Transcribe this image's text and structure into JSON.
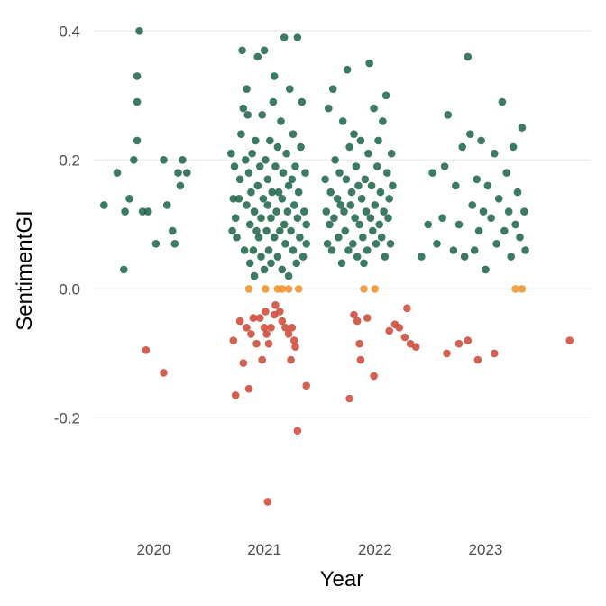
{
  "chart_data": {
    "type": "scatter",
    "title": "",
    "xlabel": "Year",
    "ylabel": "SentimentGI",
    "xlim": [
      2019.45,
      2023.95
    ],
    "ylim": [
      -0.37,
      0.42
    ],
    "x_ticks": [
      2020,
      2021,
      2022,
      2023
    ],
    "x_tick_labels": [
      "2020",
      "2021",
      "2022",
      "2023"
    ],
    "y_ticks": [
      -0.2,
      0.0,
      0.2,
      0.4
    ],
    "y_tick_labels": [
      "-0.2",
      "0.0",
      "0.2",
      "0.4"
    ],
    "grid": true,
    "legend": "none",
    "colors": {
      "positive": "#1b6347",
      "neutral": "#ef8f24",
      "negative": "#cc4433"
    },
    "series": [
      {
        "color": "#1b6347",
        "points": [
          [
            2019.55,
            0.13
          ],
          [
            2019.67,
            0.18
          ],
          [
            2019.73,
            0.03
          ],
          [
            2019.74,
            0.12
          ],
          [
            2019.78,
            0.14
          ],
          [
            2019.82,
            0.2
          ],
          [
            2019.85,
            0.23
          ],
          [
            2019.85,
            0.29
          ],
          [
            2019.85,
            0.33
          ],
          [
            2019.87,
            0.4
          ],
          [
            2019.9,
            0.12
          ],
          [
            2019.95,
            0.12
          ],
          [
            2020.02,
            0.07
          ],
          [
            2020.09,
            0.2
          ],
          [
            2020.12,
            0.13
          ],
          [
            2020.17,
            0.09
          ],
          [
            2020.19,
            0.07
          ],
          [
            2020.22,
            0.18
          ],
          [
            2020.24,
            0.16
          ],
          [
            2020.26,
            0.2
          ],
          [
            2020.3,
            0.18
          ],
          [
            2020.7,
            0.21
          ],
          [
            2020.71,
            0.09
          ],
          [
            2020.72,
            0.14
          ],
          [
            2020.73,
            0.19
          ],
          [
            2020.74,
            0.11
          ],
          [
            2020.75,
            0.08
          ],
          [
            2020.77,
            0.14
          ],
          [
            2020.78,
            0.17
          ],
          [
            2020.79,
            0.24
          ],
          [
            2020.8,
            0.37
          ],
          [
            2020.81,
            0.28
          ],
          [
            2020.82,
            0.06
          ],
          [
            2020.83,
            0.2
          ],
          [
            2020.84,
            0.31
          ],
          [
            2020.84,
            0.13
          ],
          [
            2020.85,
            0.27
          ],
          [
            2020.86,
            0.18
          ],
          [
            2020.87,
            0.1
          ],
          [
            2020.87,
            0.04
          ],
          [
            2020.88,
            0.15
          ],
          [
            2020.89,
            0.21
          ],
          [
            2020.9,
            0.06
          ],
          [
            2020.91,
            0.12
          ],
          [
            2020.91,
            0.02
          ],
          [
            2020.92,
            0.23
          ],
          [
            2020.93,
            0.09
          ],
          [
            2020.94,
            0.16
          ],
          [
            2020.94,
            0.36
          ],
          [
            2020.95,
            0.08
          ],
          [
            2020.96,
            0.19
          ],
          [
            2020.97,
            0.11
          ],
          [
            2020.97,
            0.05
          ],
          [
            2020.98,
            0.27
          ],
          [
            2020.99,
            0.14
          ],
          [
            2021.0,
            0.37
          ],
          [
            2021.0,
            0.03
          ],
          [
            2021.01,
            0.2
          ],
          [
            2021.02,
            0.09
          ],
          [
            2021.03,
            0.13
          ],
          [
            2021.03,
            0.17
          ],
          [
            2021.04,
            0.06
          ],
          [
            2021.05,
            0.23
          ],
          [
            2021.06,
            0.11
          ],
          [
            2021.06,
            0.04
          ],
          [
            2021.07,
            0.15
          ],
          [
            2021.08,
            0.29
          ],
          [
            2021.09,
            0.08
          ],
          [
            2021.09,
            0.33
          ],
          [
            2021.1,
            0.19
          ],
          [
            2021.11,
            0.12
          ],
          [
            2021.12,
            0.05
          ],
          [
            2021.12,
            0.22
          ],
          [
            2021.13,
            0.15
          ],
          [
            2021.14,
            0.09
          ],
          [
            2021.15,
            0.26
          ],
          [
            2021.16,
            0.14
          ],
          [
            2021.16,
            0.03
          ],
          [
            2021.17,
            0.18
          ],
          [
            2021.18,
            0.1
          ],
          [
            2021.18,
            0.39
          ],
          [
            2021.19,
            0.07
          ],
          [
            2021.2,
            0.21
          ],
          [
            2021.21,
            0.12
          ],
          [
            2021.22,
            0.16
          ],
          [
            2021.22,
            0.02
          ],
          [
            2021.23,
            0.31
          ],
          [
            2021.24,
            0.09
          ],
          [
            2021.25,
            0.17
          ],
          [
            2021.26,
            0.06
          ],
          [
            2021.26,
            0.24
          ],
          [
            2021.27,
            0.13
          ],
          [
            2021.28,
            0.19
          ],
          [
            2021.29,
            0.04
          ],
          [
            2021.3,
            0.11
          ],
          [
            2021.3,
            0.39
          ],
          [
            2021.31,
            0.15
          ],
          [
            2021.32,
            0.08
          ],
          [
            2021.33,
            0.22
          ],
          [
            2021.34,
            0.29
          ],
          [
            2021.35,
            0.05
          ],
          [
            2021.36,
            0.12
          ],
          [
            2021.37,
            0.18
          ],
          [
            2021.38,
            0.1
          ],
          [
            2021.38,
            0.07
          ],
          [
            2021.55,
            0.17
          ],
          [
            2021.56,
            0.12
          ],
          [
            2021.57,
            0.07
          ],
          [
            2021.58,
            0.28
          ],
          [
            2021.59,
            0.1
          ],
          [
            2021.6,
            0.15
          ],
          [
            2021.61,
            0.06
          ],
          [
            2021.62,
            0.31
          ],
          [
            2021.63,
            0.11
          ],
          [
            2021.64,
            0.2
          ],
          [
            2021.66,
            0.14
          ],
          [
            2021.67,
            0.08
          ],
          [
            2021.68,
            0.18
          ],
          [
            2021.69,
            0.13
          ],
          [
            2021.7,
            0.04
          ],
          [
            2021.71,
            0.26
          ],
          [
            2021.72,
            0.12
          ],
          [
            2021.73,
            0.09
          ],
          [
            2021.74,
            0.17
          ],
          [
            2021.75,
            0.34
          ],
          [
            2021.76,
            0.06
          ],
          [
            2021.77,
            0.22
          ],
          [
            2021.78,
            0.13
          ],
          [
            2021.79,
            0.15
          ],
          [
            2021.8,
            0.07
          ],
          [
            2021.81,
            0.24
          ],
          [
            2021.82,
            0.11
          ],
          [
            2021.83,
            0.19
          ],
          [
            2021.84,
            0.05
          ],
          [
            2021.85,
            0.16
          ],
          [
            2021.86,
            0.1
          ],
          [
            2021.87,
            0.23
          ],
          [
            2021.88,
            0.14
          ],
          [
            2021.89,
            0.08
          ],
          [
            2021.9,
            0.04
          ],
          [
            2021.91,
            0.17
          ],
          [
            2021.92,
            0.12
          ],
          [
            2021.93,
            0.06
          ],
          [
            2021.94,
            0.21
          ],
          [
            2021.95,
            0.35
          ],
          [
            2021.96,
            0.11
          ],
          [
            2021.97,
            0.16
          ],
          [
            2021.98,
            0.09
          ],
          [
            2021.99,
            0.28
          ],
          [
            2022.0,
            0.13
          ],
          [
            2022.01,
            0.07
          ],
          [
            2022.02,
            0.19
          ],
          [
            2022.03,
            0.23
          ],
          [
            2022.04,
            0.1
          ],
          [
            2022.05,
            0.15
          ],
          [
            2022.06,
            0.08
          ],
          [
            2022.07,
            0.26
          ],
          [
            2022.08,
            0.12
          ],
          [
            2022.09,
            0.05
          ],
          [
            2022.1,
            0.3
          ],
          [
            2022.11,
            0.18
          ],
          [
            2022.12,
            0.11
          ],
          [
            2022.13,
            0.14
          ],
          [
            2022.14,
            0.07
          ],
          [
            2022.15,
            0.21
          ],
          [
            2022.16,
            0.16
          ],
          [
            2022.42,
            0.05
          ],
          [
            2022.48,
            0.1
          ],
          [
            2022.52,
            0.18
          ],
          [
            2022.56,
            0.07
          ],
          [
            2022.61,
            0.11
          ],
          [
            2022.63,
            0.19
          ],
          [
            2022.66,
            0.27
          ],
          [
            2022.71,
            0.06
          ],
          [
            2022.73,
            0.16
          ],
          [
            2022.76,
            0.1
          ],
          [
            2022.79,
            0.22
          ],
          [
            2022.81,
            0.05
          ],
          [
            2022.84,
            0.36
          ],
          [
            2022.86,
            0.24
          ],
          [
            2022.88,
            0.13
          ],
          [
            2022.9,
            0.06
          ],
          [
            2022.92,
            0.17
          ],
          [
            2022.94,
            0.09
          ],
          [
            2022.96,
            0.23
          ],
          [
            2022.98,
            0.12
          ],
          [
            2023.0,
            0.03
          ],
          [
            2023.02,
            0.16
          ],
          [
            2023.05,
            0.11
          ],
          [
            2023.08,
            0.21
          ],
          [
            2023.1,
            0.07
          ],
          [
            2023.12,
            0.14
          ],
          [
            2023.15,
            0.29
          ],
          [
            2023.17,
            0.09
          ],
          [
            2023.19,
            0.18
          ],
          [
            2023.21,
            0.12
          ],
          [
            2023.23,
            0.05
          ],
          [
            2023.25,
            0.22
          ],
          [
            2023.27,
            0.1
          ],
          [
            2023.29,
            0.15
          ],
          [
            2023.31,
            0.08
          ],
          [
            2023.33,
            0.25
          ],
          [
            2023.35,
            0.12
          ],
          [
            2023.36,
            0.06
          ]
        ]
      },
      {
        "color": "#ef8f24",
        "points": [
          [
            2020.86,
            0.0
          ],
          [
            2021.01,
            0.0
          ],
          [
            2021.12,
            0.0
          ],
          [
            2021.16,
            0.0
          ],
          [
            2021.22,
            0.0
          ],
          [
            2021.31,
            0.0
          ],
          [
            2021.9,
            0.0
          ],
          [
            2022.0,
            0.0
          ],
          [
            2023.27,
            0.0
          ],
          [
            2023.33,
            0.0
          ]
        ]
      },
      {
        "color": "#cc4433",
        "points": [
          [
            2019.93,
            -0.095
          ],
          [
            2020.09,
            -0.13
          ],
          [
            2020.72,
            -0.08
          ],
          [
            2020.74,
            -0.165
          ],
          [
            2020.78,
            -0.05
          ],
          [
            2020.81,
            -0.115
          ],
          [
            2020.84,
            -0.06
          ],
          [
            2020.86,
            -0.155
          ],
          [
            2020.88,
            -0.07
          ],
          [
            2020.9,
            -0.045
          ],
          [
            2020.93,
            -0.085
          ],
          [
            2020.96,
            -0.045
          ],
          [
            2020.98,
            -0.11
          ],
          [
            2021.0,
            -0.06
          ],
          [
            2021.01,
            -0.035
          ],
          [
            2021.02,
            -0.07
          ],
          [
            2021.03,
            -0.33
          ],
          [
            2021.04,
            -0.085
          ],
          [
            2021.06,
            -0.06
          ],
          [
            2021.09,
            -0.04
          ],
          [
            2021.1,
            -0.025
          ],
          [
            2021.14,
            -0.035
          ],
          [
            2021.16,
            -0.05
          ],
          [
            2021.19,
            -0.06
          ],
          [
            2021.22,
            -0.07
          ],
          [
            2021.24,
            -0.11
          ],
          [
            2021.25,
            -0.06
          ],
          [
            2021.27,
            -0.08
          ],
          [
            2021.28,
            -0.09
          ],
          [
            2021.3,
            -0.22
          ],
          [
            2021.38,
            -0.15
          ],
          [
            2021.77,
            -0.17
          ],
          [
            2021.81,
            -0.04
          ],
          [
            2021.84,
            -0.05
          ],
          [
            2021.86,
            -0.085
          ],
          [
            2021.87,
            -0.11
          ],
          [
            2021.93,
            -0.045
          ],
          [
            2021.99,
            -0.135
          ],
          [
            2022.13,
            -0.065
          ],
          [
            2022.18,
            -0.055
          ],
          [
            2022.22,
            -0.06
          ],
          [
            2022.27,
            -0.075
          ],
          [
            2022.29,
            -0.03
          ],
          [
            2022.32,
            -0.085
          ],
          [
            2022.37,
            -0.09
          ],
          [
            2022.65,
            -0.1
          ],
          [
            2022.76,
            -0.085
          ],
          [
            2022.84,
            -0.08
          ],
          [
            2022.93,
            -0.11
          ],
          [
            2023.08,
            -0.1
          ],
          [
            2023.76,
            -0.08
          ]
        ]
      }
    ]
  }
}
